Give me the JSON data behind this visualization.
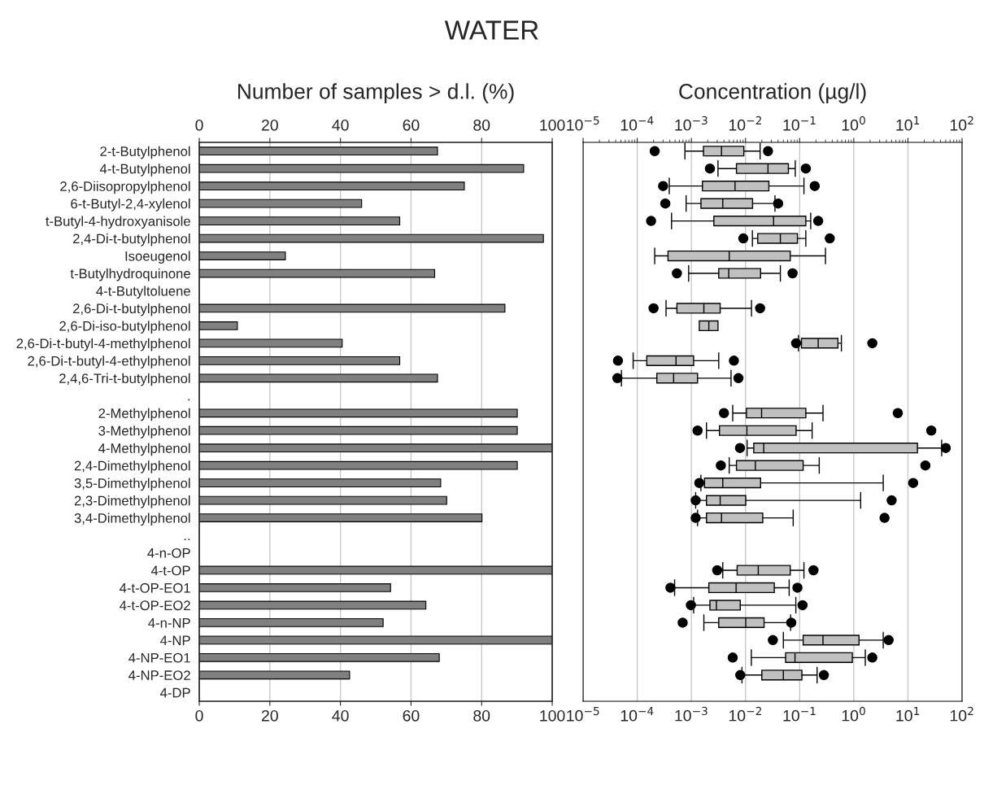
{
  "chart_data": [
    {
      "type": "bar",
      "orientation": "horizontal",
      "title": "WATER",
      "x2label": "Number of samples > d.l. (%)",
      "categories": [
        "2-t-Butylphenol",
        "4-t-Butylphenol",
        "2,6-Diisopropylphenol",
        "6-t-Butyl-2,4-xylenol",
        "t-Butyl-4-hydroxyanisole",
        "2,4-Di-t-butylphenol",
        "Isoeugenol",
        "t-Butylhydroquinone",
        "4-t-Butyltoluene",
        "2,6-Di-t-butylphenol",
        "2,6-Di-iso-butylphenol",
        "2,6-Di-t-butyl-4-methylphenol",
        "2,6-Di-t-butyl-4-ethylphenol",
        "2,4,6-Tri-t-butylphenol",
        ".",
        "2-Methylphenol",
        "3-Methylphenol",
        "4-Methylphenol",
        "2,4-Dimethylphenol",
        "3,5-Dimethylphenol",
        "2,3-Dimethylphenol",
        "3,4-Dimethylphenol",
        "..",
        "4-n-OP",
        "4-t-OP",
        "4-t-OP-EO1",
        "4-t-OP-EO2",
        "4-n-NP",
        "4-NP",
        "4-NP-EO1",
        "4-NP-EO2",
        "4-DP"
      ],
      "values": [
        67.5,
        91.9,
        75.1,
        46.0,
        56.8,
        97.5,
        24.4,
        66.7,
        null,
        86.6,
        10.8,
        40.5,
        56.8,
        67.5,
        null,
        90.1,
        90.1,
        100,
        90.1,
        68.4,
        70.1,
        80.1,
        null,
        null,
        100,
        54.2,
        64.2,
        52.1,
        100,
        68.0,
        42.6,
        null
      ],
      "color": "#808080",
      "xlim": [
        0,
        100
      ],
      "xticks": [
        0,
        20,
        40,
        60,
        80,
        100
      ],
      "x2lim": [
        0,
        100
      ],
      "x2ticks": [
        0,
        20,
        40,
        60,
        80,
        100
      ],
      "grid": "x"
    },
    {
      "type": "box",
      "orientation": "horizontal",
      "x2label": "Concentration (µg/l)",
      "log": "x",
      "tick_labels": "x",
      "color": "#c0c0c0",
      "boxes": [
        {
          "low": 0.00076,
          "q1": 0.00167,
          "median": 0.0036,
          "q3": 0.0093,
          "high": 0.0186,
          "outliers": [
            0.00021,
            0.026
          ]
        },
        {
          "low": 0.0031,
          "q1": 0.0068,
          "median": 0.026,
          "q3": 0.062,
          "high": 0.083,
          "outliers": [
            0.0022,
            0.13
          ]
        },
        {
          "low": 0.00039,
          "q1": 0.0016,
          "median": 0.0064,
          "q3": 0.027,
          "high": 0.12,
          "outliers": [
            0.0003,
            0.19
          ]
        },
        {
          "low": 0.0008,
          "q1": 0.0015,
          "median": 0.0038,
          "q3": 0.0135,
          "high": 0.035,
          "outliers": [
            0.00033,
            0.04
          ]
        },
        {
          "low": 0.00043,
          "q1": 0.0026,
          "median": 0.033,
          "q3": 0.13,
          "high": 0.16,
          "outliers": [
            0.00018,
            0.22
          ]
        },
        {
          "low": 0.0134,
          "q1": 0.0168,
          "median": 0.044,
          "q3": 0.091,
          "high": 0.13,
          "outliers": [
            0.0091,
            0.36
          ]
        },
        {
          "low": 0.00021,
          "q1": 0.00037,
          "median": 0.005,
          "q3": 0.067,
          "high": 0.3
        },
        {
          "low": 0.00089,
          "q1": 0.0032,
          "median": 0.0049,
          "q3": 0.019,
          "high": 0.044,
          "outliers": [
            0.00054,
            0.074
          ]
        },
        null,
        {
          "low": 0.00034,
          "q1": 0.00054,
          "median": 0.0017,
          "q3": 0.0034,
          "high": 0.0129,
          "outliers": [
            0.0002,
            0.0186
          ]
        },
        {
          "low": 0.0014,
          "q1": 0.0014,
          "median": 0.0021,
          "q3": 0.0031,
          "high": 0.0031
        },
        {
          "low": 0.095,
          "q1": 0.108,
          "median": 0.22,
          "q3": 0.51,
          "high": 0.59,
          "outliers": [
            0.086,
            2.2
          ]
        },
        {
          "low": 8.4e-05,
          "q1": 0.00015,
          "median": 0.00052,
          "q3": 0.0011,
          "high": 0.0032,
          "outliers": [
            4.4e-05,
            0.0061
          ]
        },
        {
          "low": 5.1e-05,
          "q1": 0.00023,
          "median": 0.00047,
          "q3": 0.0013,
          "high": 0.0054,
          "outliers": [
            4.3e-05,
            0.0074
          ]
        },
        null,
        {
          "low": 0.0058,
          "q1": 0.0104,
          "median": 0.0198,
          "q3": 0.13,
          "high": 0.27,
          "outliers": [
            0.004,
            6.5
          ]
        },
        {
          "low": 0.0019,
          "q1": 0.0033,
          "median": 0.0106,
          "q3": 0.086,
          "high": 0.17,
          "outliers": [
            0.0013,
            27
          ]
        },
        {
          "low": 0.0107,
          "q1": 0.0142,
          "median": 0.0217,
          "q3": 15,
          "high": 42,
          "outliers": [
            0.0079,
            50
          ]
        },
        {
          "low": 0.005,
          "q1": 0.0068,
          "median": 0.0152,
          "q3": 0.116,
          "high": 0.23,
          "outliers": [
            0.0035,
            21
          ]
        },
        {
          "low": 0.0015,
          "q1": 0.00175,
          "median": 0.0038,
          "q3": 0.019,
          "high": 3.5,
          "outliers": [
            0.0014,
            12.5
          ]
        },
        {
          "low": 0.0012,
          "q1": 0.0019,
          "median": 0.0034,
          "q3": 0.0101,
          "high": 1.34,
          "outliers": [
            0.0012,
            5.0
          ]
        },
        {
          "low": 0.0013,
          "q1": 0.0019,
          "median": 0.0036,
          "q3": 0.0208,
          "high": 0.076,
          "outliers": [
            0.0012,
            3.7
          ]
        },
        null,
        null,
        {
          "low": 0.0038,
          "q1": 0.007,
          "median": 0.0172,
          "q3": 0.067,
          "high": 0.12,
          "outliers": [
            0.003,
            0.18
          ]
        },
        {
          "low": 0.00049,
          "q1": 0.0021,
          "median": 0.0067,
          "q3": 0.034,
          "high": 0.064,
          "outliers": [
            0.00041,
            0.091
          ]
        },
        {
          "low": 0.0011,
          "q1": 0.0022,
          "median": 0.0029,
          "q3": 0.008,
          "high": 0.085,
          "outliers": [
            0.00098,
            0.113
          ]
        },
        {
          "low": 0.0017,
          "q1": 0.0032,
          "median": 0.0101,
          "q3": 0.022,
          "high": 0.068,
          "outliers": [
            0.00069,
            0.07
          ]
        },
        {
          "low": 0.05,
          "q1": 0.116,
          "median": 0.27,
          "q3": 1.25,
          "high": 3.5,
          "outliers": [
            0.032,
            4.4
          ]
        },
        {
          "low": 0.0128,
          "q1": 0.055,
          "median": 0.082,
          "q3": 0.94,
          "high": 1.63,
          "outliers": [
            0.0058,
            2.2
          ]
        },
        {
          "low": 0.0086,
          "q1": 0.02,
          "median": 0.05,
          "q3": 0.11,
          "high": 0.21,
          "outliers": [
            0.008,
            0.28
          ]
        },
        null
      ],
      "xlim": [
        1e-05,
        100
      ],
      "xticks": [
        {
          "value": 1e-05,
          "label": "10$^{−5}$"
        },
        {
          "value": 0.0001,
          "label": "10$^{−4}$"
        },
        {
          "value": 0.001,
          "label": "10$^{−3}$"
        },
        {
          "value": 0.01,
          "label": "10$^{−2}$"
        },
        {
          "value": 0.1,
          "label": "10$^{−1}$"
        },
        {
          "value": 1,
          "label": "10$^{0}$"
        },
        {
          "value": 10,
          "label": "10$^{1}$"
        },
        {
          "value": 100,
          "label": "10$^{2}$"
        }
      ],
      "grid": "x"
    }
  ]
}
